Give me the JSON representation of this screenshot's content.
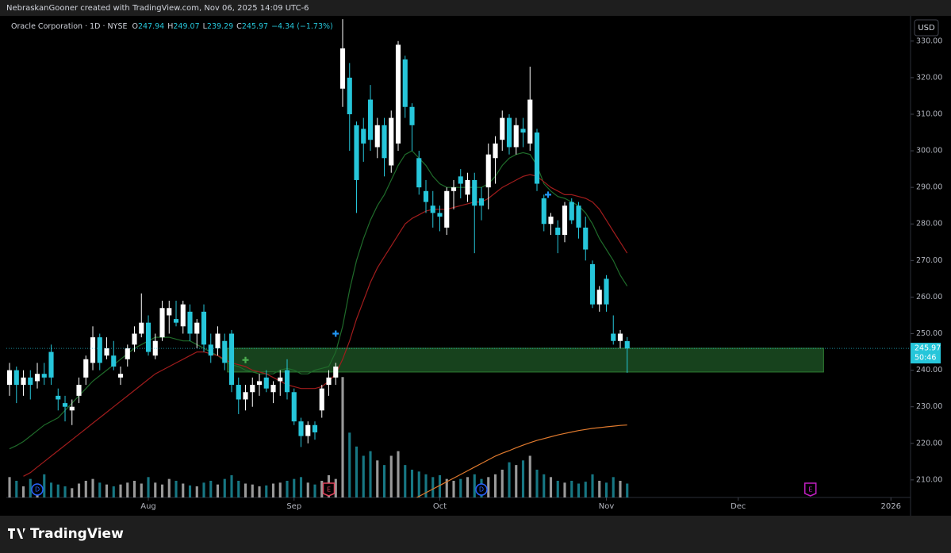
{
  "header": "NebraskanGooner created with TradingView.com, Nov 06, 2025 14:09 UTC-6",
  "footer_logo": "TradingView",
  "chart_data": {
    "type": "candlestick",
    "title": "Oracle Corporation · 1D · NYSE",
    "legend_keys": [
      "O",
      "H",
      "L",
      "C"
    ],
    "change": "−4.34 (−1.73%)",
    "currency": "USD",
    "countdown": "50:46",
    "up_color": "#ffffff",
    "down_color": "#26c6da",
    "candles": [
      [
        236,
        242,
        233,
        240
      ],
      [
        240,
        241,
        231,
        236
      ],
      [
        236,
        240,
        233,
        238
      ],
      [
        238,
        240,
        232,
        236
      ],
      [
        237,
        242,
        235,
        239
      ],
      [
        239,
        242,
        236,
        238
      ],
      [
        245,
        247,
        236,
        238
      ],
      [
        233,
        235,
        229,
        232
      ],
      [
        231,
        233,
        226,
        230
      ],
      [
        229,
        232,
        225,
        230
      ],
      [
        233,
        238,
        231,
        236
      ],
      [
        238,
        244,
        236,
        243
      ],
      [
        242,
        252,
        240,
        249
      ],
      [
        249,
        250,
        240,
        242
      ],
      [
        244,
        249,
        243,
        246
      ],
      [
        244,
        248,
        240,
        241
      ],
      [
        238,
        241,
        236,
        239
      ],
      [
        243,
        247,
        241,
        246
      ],
      [
        247,
        252,
        245,
        250
      ],
      [
        250,
        261,
        249,
        253
      ],
      [
        253,
        255,
        244,
        245
      ],
      [
        244,
        250,
        243,
        248
      ],
      [
        249,
        259,
        248,
        257
      ],
      [
        255,
        259,
        250,
        257
      ],
      [
        254,
        259,
        252,
        253
      ],
      [
        252,
        259,
        250,
        258
      ],
      [
        256,
        258,
        248,
        250
      ],
      [
        250,
        254,
        246,
        253
      ],
      [
        256,
        258,
        245,
        247
      ],
      [
        247,
        250,
        242,
        244
      ],
      [
        246,
        252,
        244,
        250
      ],
      [
        248,
        250,
        240,
        242
      ],
      [
        250,
        251,
        234,
        236
      ],
      [
        236,
        238,
        228,
        232
      ],
      [
        232,
        236,
        229,
        234
      ],
      [
        234,
        238,
        230,
        236
      ],
      [
        236,
        239,
        233,
        237
      ],
      [
        238,
        240,
        234,
        235
      ],
      [
        234,
        237,
        231,
        236
      ],
      [
        237,
        240,
        233,
        238
      ],
      [
        240,
        243,
        232,
        234
      ],
      [
        234,
        235,
        225,
        226
      ],
      [
        226,
        227,
        219,
        222
      ],
      [
        222,
        226,
        220,
        225
      ],
      [
        225,
        226,
        221,
        223
      ],
      [
        229,
        236,
        227,
        235
      ],
      [
        236,
        240,
        233,
        238
      ],
      [
        238,
        242,
        236,
        241
      ],
      [
        317,
        336,
        312,
        328
      ],
      [
        320,
        324,
        300,
        310
      ],
      [
        307,
        308,
        283,
        292
      ],
      [
        306,
        309,
        297,
        302
      ],
      [
        314,
        318,
        300,
        303
      ],
      [
        301,
        309,
        298,
        307
      ],
      [
        307,
        309,
        293,
        298
      ],
      [
        296,
        311,
        294,
        309
      ],
      [
        302,
        330,
        300,
        329
      ],
      [
        325,
        326,
        309,
        312
      ],
      [
        312,
        313,
        300,
        307
      ],
      [
        298,
        300,
        288,
        290
      ],
      [
        289,
        292,
        283,
        286
      ],
      [
        285,
        289,
        279,
        283
      ],
      [
        283,
        285,
        278,
        282
      ],
      [
        279,
        290,
        277,
        289
      ],
      [
        289,
        292,
        284,
        290
      ],
      [
        293,
        295,
        287,
        291
      ],
      [
        288,
        294,
        286,
        292
      ],
      [
        292,
        294,
        272,
        285
      ],
      [
        287,
        290,
        281,
        285
      ],
      [
        290,
        302,
        284,
        299
      ],
      [
        298,
        304,
        291,
        302
      ],
      [
        303,
        311,
        300,
        309
      ],
      [
        309,
        310,
        299,
        301
      ],
      [
        301,
        309,
        299,
        307
      ],
      [
        306,
        309,
        301,
        305
      ],
      [
        302,
        323,
        300,
        314
      ],
      [
        305,
        306,
        289,
        291
      ],
      [
        287,
        288,
        278,
        280
      ],
      [
        280,
        283,
        277,
        282
      ],
      [
        279,
        281,
        272,
        277
      ],
      [
        277,
        286,
        275,
        285
      ],
      [
        286,
        287,
        280,
        281
      ],
      [
        285,
        286,
        276,
        279
      ],
      [
        279,
        282,
        270,
        273
      ],
      [
        269,
        270,
        257,
        258
      ],
      [
        258,
        263,
        256,
        262
      ],
      [
        265,
        266,
        256,
        258
      ],
      [
        250,
        255,
        247,
        248
      ],
      [
        248,
        251,
        246,
        250
      ],
      [
        247.94,
        249.07,
        239.29,
        245.97
      ]
    ],
    "volume": [
      22,
      18,
      12,
      20,
      15,
      25,
      16,
      14,
      12,
      10,
      15,
      18,
      20,
      16,
      14,
      12,
      14,
      16,
      18,
      15,
      22,
      16,
      14,
      20,
      18,
      15,
      13,
      12,
      16,
      18,
      14,
      20,
      24,
      18,
      15,
      14,
      12,
      13,
      15,
      16,
      18,
      20,
      22,
      16,
      14,
      18,
      24,
      20,
      130,
      70,
      55,
      45,
      50,
      40,
      35,
      45,
      50,
      35,
      30,
      28,
      25,
      22,
      24,
      20,
      18,
      20,
      22,
      25,
      20,
      22,
      25,
      30,
      38,
      35,
      40,
      45,
      30,
      25,
      22,
      18,
      16,
      18,
      15,
      17,
      25,
      18,
      16,
      22,
      18,
      15
    ],
    "volume_lim": [
      0,
      520
    ],
    "series": [
      {
        "color": "#1f6b2a",
        "values": [
          218.5,
          219.4,
          220.5,
          222,
          223.5,
          225,
          226,
          227,
          229,
          231,
          233,
          235,
          237,
          238.5,
          240,
          241.5,
          243,
          244.5,
          246,
          247,
          248,
          249,
          249,
          249,
          248.5,
          248,
          248,
          247,
          246,
          245,
          244,
          242.5,
          241.5,
          241,
          240,
          239.5,
          239,
          239,
          239,
          240,
          240.5,
          240,
          239,
          239,
          240,
          240.5,
          241,
          245,
          252,
          262,
          270,
          276,
          281,
          285,
          288,
          292,
          296,
          299,
          300,
          298,
          296,
          293,
          291,
          290,
          290,
          290,
          290,
          290,
          290,
          291,
          293,
          296,
          298,
          299,
          299.5,
          299,
          296,
          291,
          289,
          287.5,
          287,
          286,
          285,
          283,
          280,
          276,
          273,
          270,
          266,
          263
        ]
      },
      {
        "color": "#a01c1c",
        "values": [
          null,
          null,
          211,
          212,
          213.5,
          215,
          216.5,
          218,
          219.5,
          221,
          222.5,
          224,
          225.5,
          227,
          228.5,
          230,
          231.5,
          233,
          234.5,
          236,
          237.5,
          239,
          240,
          241,
          242,
          243,
          244,
          245,
          245,
          244.5,
          244,
          243,
          242,
          241.5,
          241,
          240,
          239.5,
          239,
          238,
          237,
          236,
          235.5,
          235,
          235,
          235,
          235.5,
          237,
          239,
          243,
          248,
          254,
          259,
          264,
          268,
          271,
          274,
          277,
          280,
          281.5,
          282.5,
          283.5,
          284,
          284,
          284,
          284.5,
          285,
          285.5,
          286,
          286,
          287,
          288.5,
          290,
          291,
          292,
          293,
          293.5,
          293,
          291.5,
          290,
          289,
          288,
          288,
          287.5,
          287,
          286,
          284,
          281,
          278,
          275,
          272
        ]
      },
      {
        "color": "#e07a2e",
        "values": [
          null,
          null,
          null,
          null,
          null,
          null,
          null,
          null,
          null,
          null,
          null,
          null,
          null,
          null,
          null,
          null,
          null,
          null,
          null,
          null,
          null,
          null,
          null,
          null,
          null,
          null,
          null,
          null,
          null,
          null,
          null,
          null,
          null,
          null,
          null,
          null,
          null,
          null,
          null,
          null,
          null,
          null,
          null,
          null,
          null,
          null,
          null,
          null,
          null,
          null,
          null,
          null,
          null,
          null,
          null,
          null,
          null,
          null,
          204.5,
          205.5,
          206.5,
          207.5,
          208.5,
          209.5,
          210.5,
          211.5,
          212.5,
          213.5,
          214.5,
          215.5,
          216.5,
          217.3,
          218,
          218.8,
          219.5,
          220.2,
          220.8,
          221.3,
          221.8,
          222.3,
          222.7,
          223.1,
          223.5,
          223.8,
          224.1,
          224.3,
          224.5,
          224.7,
          224.9,
          225
        ]
      }
    ],
    "ylim": [
      205.2,
      336.9
    ],
    "yticks": [
      {
        "value": 210,
        "label": "210.00"
      },
      {
        "value": 220,
        "label": "220.00"
      },
      {
        "value": 230,
        "label": "230.00"
      },
      {
        "value": 240,
        "label": "240.00"
      },
      {
        "value": 250,
        "label": "250.00"
      },
      {
        "value": 260,
        "label": "260.00"
      },
      {
        "value": 270,
        "label": "270.00"
      },
      {
        "value": 280,
        "label": "280.00"
      },
      {
        "value": 290,
        "label": "290.00"
      },
      {
        "value": 300,
        "label": "300.00"
      },
      {
        "value": 310,
        "label": "310.00"
      },
      {
        "value": 320,
        "label": "320.00"
      },
      {
        "value": 330,
        "label": "330.00"
      }
    ],
    "xlim": [
      -0.46,
      129.83
    ],
    "xticks": [
      {
        "value": 20,
        "label": "Aug"
      },
      {
        "value": 41,
        "label": "Sep"
      },
      {
        "value": 62,
        "label": "Oct"
      },
      {
        "value": 86,
        "label": "Nov"
      },
      {
        "value": 105,
        "label": "Dec"
      },
      {
        "value": 127,
        "label": "2026"
      }
    ],
    "zone": {
      "x": [
        31.4,
        117.3
      ],
      "low": 239.5,
      "high": 246,
      "color": "#1b4d22"
    },
    "events": [
      {
        "label": "D",
        "x": 4,
        "color": "#2962ff"
      },
      {
        "label": "E",
        "x": 46,
        "color": "#e0435c"
      },
      {
        "label": "D",
        "x": 68,
        "color": "#2962ff"
      },
      {
        "label": "E",
        "x": 115.4,
        "color": "#c21fc2"
      }
    ],
    "markers": [
      {
        "x": 34,
        "y": 242.8,
        "color": "#4caf50"
      },
      {
        "x": 47,
        "y": 250,
        "color": "#2196f3"
      },
      {
        "x": 77.6,
        "y": 288,
        "color": "#2196f3"
      }
    ],
    "last_price_line": true
  }
}
